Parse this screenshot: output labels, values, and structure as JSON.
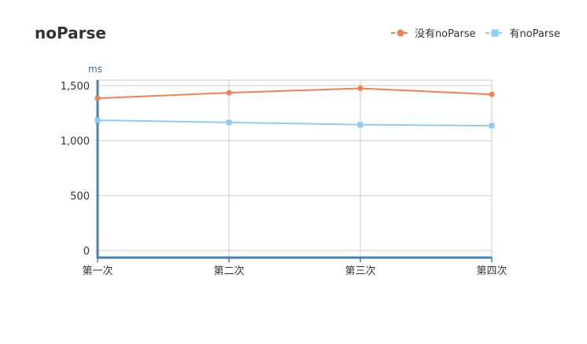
{
  "chart_data": {
    "type": "line",
    "title": "noParse",
    "ylabel": "ms",
    "xlabel": "",
    "categories": [
      "第一次",
      "第二次",
      "第三次",
      "第四次"
    ],
    "ylim": [
      0,
      1500
    ],
    "yticks": [
      0,
      500,
      1000,
      1500
    ],
    "ytick_labels": [
      "0",
      "500",
      "1,000",
      "1,500"
    ],
    "grid": true,
    "legend_position": "top-right",
    "series": [
      {
        "name": "没有noParse",
        "values": [
          1385,
          1435,
          1475,
          1420
        ],
        "color": "#f5804f",
        "marker": "circle"
      },
      {
        "name": "有noParse",
        "values": [
          1185,
          1165,
          1145,
          1135
        ],
        "color": "#8ccdf5",
        "marker": "square"
      }
    ]
  }
}
